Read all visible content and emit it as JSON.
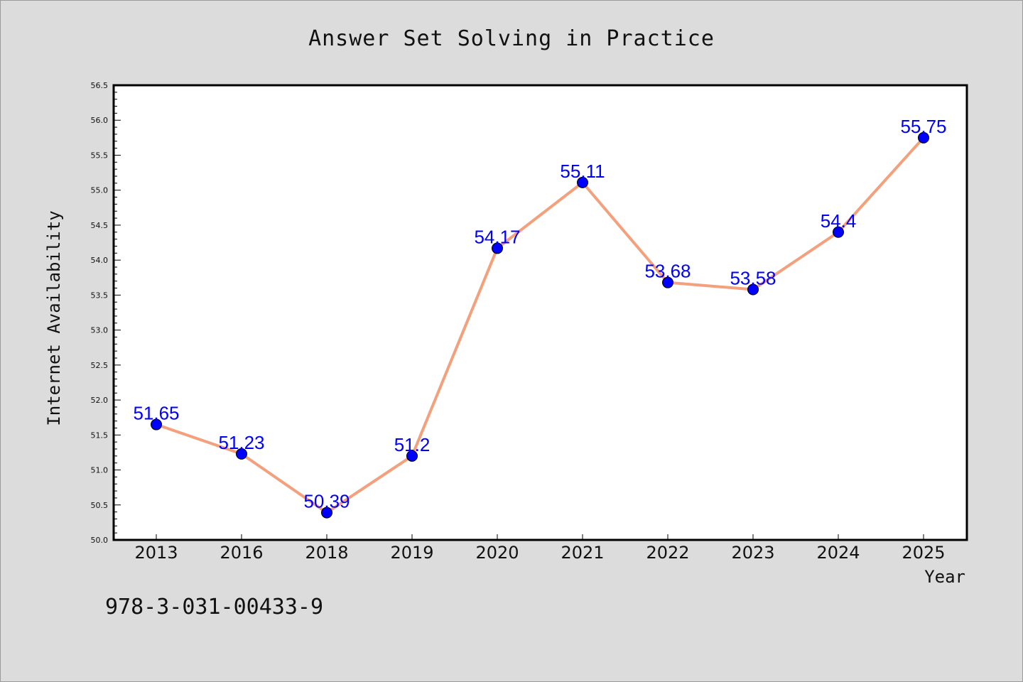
{
  "chart_data": {
    "type": "line",
    "title": "Answer Set Solving in Practice",
    "xlabel": "Year",
    "ylabel": "Internet Availability",
    "categories": [
      "2013",
      "2016",
      "2018",
      "2019",
      "2020",
      "2021",
      "2022",
      "2023",
      "2024",
      "2025"
    ],
    "values": [
      51.65,
      51.23,
      50.39,
      51.2,
      54.17,
      55.11,
      53.68,
      53.58,
      54.4,
      55.75
    ],
    "data_labels": [
      "51.65",
      "51.23",
      "50.39",
      "51.2",
      "54.17",
      "55.11",
      "53.68",
      "53.58",
      "54.4",
      "55.75"
    ],
    "ylim": [
      50.0,
      56.5
    ],
    "yticks": [
      "50.0",
      "50.5",
      "51.0",
      "51.5",
      "52.0",
      "52.5",
      "53.0",
      "53.5",
      "54.0",
      "54.5",
      "55.0",
      "55.5",
      "56.0",
      "56.5"
    ],
    "grid": false,
    "line_color": "#f4a07c",
    "marker_color": "#0000ff",
    "label_color": "#0000ff",
    "background_color": "#dcdcdc",
    "plot_background": "#ffffff"
  },
  "footer": {
    "isbn": "978-3-031-00433-9"
  }
}
